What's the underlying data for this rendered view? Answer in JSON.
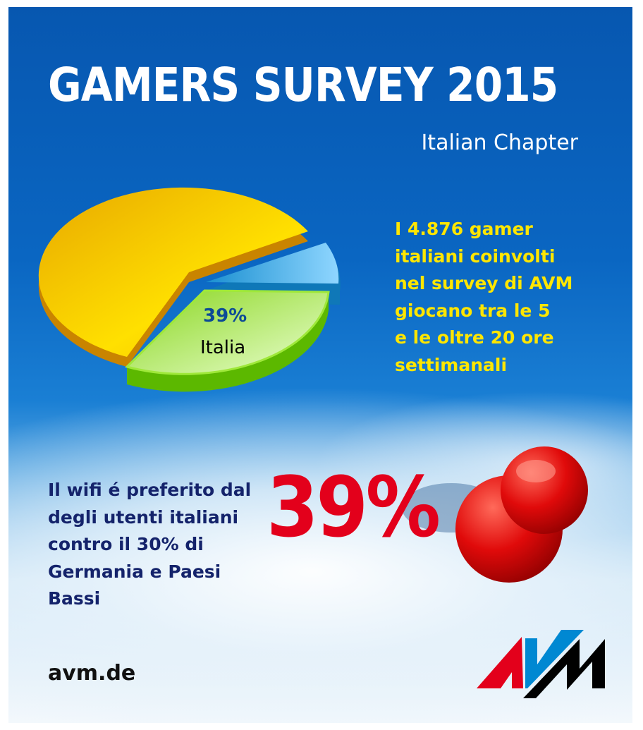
{
  "header": {
    "title": "GAMERS SURVEY 2015",
    "subtitle": "Italian Chapter"
  },
  "pie": {
    "highlight_value": "39%",
    "highlight_label": "Italia",
    "colors": {
      "main": "#f5c400",
      "highlight": "#7fd41a",
      "small": "#2aa6e6"
    }
  },
  "stat1": {
    "lines": [
      "I 4.876 gamer",
      "italiani coinvolti",
      "nel survey di AVM",
      "giocano tra le 5",
      "e le oltre 20 ore",
      "settimanali"
    ]
  },
  "stat2": {
    "lines": [
      "Il wifi é preferito dal",
      "degli utenti italiani",
      "contro il 30% di",
      "Germania e Paesi",
      "Bassi"
    ],
    "big_value": "39%"
  },
  "footer": {
    "website": "avm.de",
    "logo_text": "AVM",
    "logo_colors": [
      "#e3001b",
      "#0088d2",
      "#000000"
    ]
  },
  "icons": {
    "pin": "red-pushpin-icon"
  }
}
